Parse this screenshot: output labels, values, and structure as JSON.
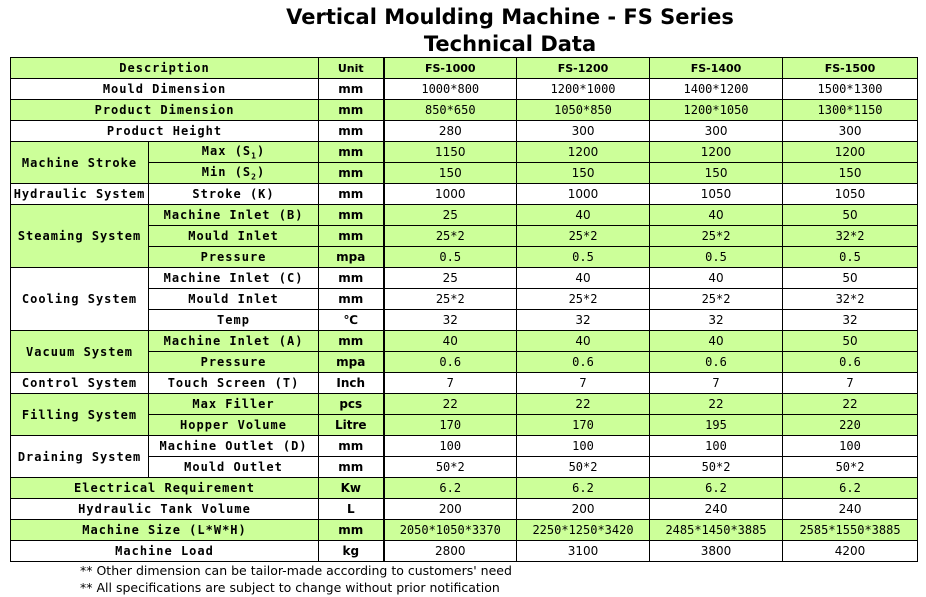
{
  "title": "Vertical Moulding Machine - FS Series",
  "subtitle": "Technical Data",
  "header": {
    "description": "Description",
    "unit": "Unit",
    "models": [
      "FS-1000",
      "FS-1200",
      "FS-1400",
      "FS-1500"
    ]
  },
  "rows": {
    "mould_dimension": {
      "label": "Mould Dimension",
      "unit": "mm",
      "values": [
        "1000*800",
        "1200*1000",
        "1400*1200",
        "1500*1300"
      ]
    },
    "product_dimension": {
      "label": "Product Dimension",
      "unit": "mm",
      "values": [
        "850*650",
        "1050*850",
        "1200*1050",
        "1300*1150"
      ]
    },
    "product_height": {
      "label": "Product Height",
      "unit": "mm",
      "values": [
        "280",
        "300",
        "300",
        "300"
      ]
    },
    "machine_stroke": {
      "group": "Machine Stroke",
      "max": {
        "label": "Max (S",
        "sub": "1",
        "label_end": ")",
        "unit": "mm",
        "values": [
          "1150",
          "1200",
          "1200",
          "1200"
        ]
      },
      "min": {
        "label": "Min (S",
        "sub": "2",
        "label_end": ")",
        "unit": "mm",
        "values": [
          "150",
          "150",
          "150",
          "150"
        ]
      }
    },
    "hydraulic_system": {
      "group": "Hydraulic System",
      "label": "Stroke (K)",
      "unit": "mm",
      "values": [
        "1000",
        "1000",
        "1050",
        "1050"
      ]
    },
    "steaming_system": {
      "group": "Steaming System",
      "machine_inlet": {
        "label": "Machine Inlet (B)",
        "unit": "mm",
        "values": [
          "25",
          "40",
          "40",
          "50"
        ]
      },
      "mould_inlet": {
        "label": "Mould Inlet",
        "unit": "mm",
        "values": [
          "25*2",
          "25*2",
          "25*2",
          "32*2"
        ]
      },
      "pressure": {
        "label": "Pressure",
        "unit": "mpa",
        "values": [
          "0.5",
          "0.5",
          "0.5",
          "0.5"
        ]
      }
    },
    "cooling_system": {
      "group": "Cooling System",
      "machine_inlet": {
        "label": "Machine Inlet (C)",
        "unit": "mm",
        "values": [
          "25",
          "40",
          "40",
          "50"
        ]
      },
      "mould_inlet": {
        "label": "Mould Inlet",
        "unit": "mm",
        "values": [
          "25*2",
          "25*2",
          "25*2",
          "32*2"
        ]
      },
      "temp": {
        "label": "Temp",
        "unit": "℃",
        "values": [
          "32",
          "32",
          "32",
          "32"
        ]
      }
    },
    "vacuum_system": {
      "group": "Vacuum System",
      "machine_inlet": {
        "label": "Machine Inlet (A)",
        "unit": "mm",
        "values": [
          "40",
          "40",
          "40",
          "50"
        ]
      },
      "pressure": {
        "label": "Pressure",
        "unit": "mpa",
        "values": [
          "0.6",
          "0.6",
          "0.6",
          "0.6"
        ]
      }
    },
    "control_system": {
      "group": "Control System",
      "label": "Touch Screen (T)",
      "unit": "Inch",
      "values": [
        "7",
        "7",
        "7",
        "7"
      ]
    },
    "filling_system": {
      "group": "Filling System",
      "max_filler": {
        "label": "Max Filler",
        "unit": "pcs",
        "values": [
          "22",
          "22",
          "22",
          "22"
        ]
      },
      "hopper_volume": {
        "label": "Hopper Volume",
        "unit": "Litre",
        "values": [
          "170",
          "170",
          "195",
          "220"
        ]
      }
    },
    "draining_system": {
      "group": "Draining System",
      "machine_outlet": {
        "label": "Machine Outlet (D)",
        "unit": "mm",
        "values": [
          "100",
          "100",
          "100",
          "100"
        ]
      },
      "mould_outlet": {
        "label": "Mould Outlet",
        "unit": "mm",
        "values": [
          "50*2",
          "50*2",
          "50*2",
          "50*2"
        ]
      }
    },
    "electrical_requirement": {
      "label": "Electrical Requirement",
      "unit": "Kw",
      "values": [
        "6.2",
        "6.2",
        "6.2",
        "6.2"
      ]
    },
    "hydraulic_tank_volume": {
      "label": "Hydraulic Tank Volume",
      "unit": "L",
      "values": [
        "200",
        "200",
        "240",
        "240"
      ]
    },
    "machine_size": {
      "label": "Machine Size (L*W*H)",
      "unit": "mm",
      "values": [
        "2050*1050*3370",
        "2250*1250*3420",
        "2485*1450*3885",
        "2585*1550*3885"
      ]
    },
    "machine_load": {
      "label": "Machine Load",
      "unit": "kg",
      "values": [
        "2800",
        "3100",
        "3800",
        "4200"
      ]
    }
  },
  "notes": [
    "** Other dimension can be tailor-made according to customers' need",
    "** All specifications are subject to change without prior notification"
  ],
  "colors": {
    "green_row": "#ccff99",
    "white_row": "#ffffff"
  }
}
